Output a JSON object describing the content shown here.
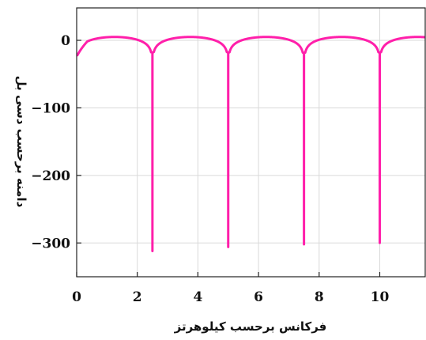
{
  "chart_data": {
    "type": "line",
    "title": "",
    "xlabel": "فرکانس برحسب کیلوهرتز",
    "ylabel": "دامنه برحسب دسی بل",
    "xlim": [
      0,
      11.5
    ],
    "ylim": [
      -350,
      48
    ],
    "x_ticks": [
      0,
      2,
      4,
      6,
      8,
      10
    ],
    "y_ticks": [
      0,
      -100,
      -200,
      -300
    ],
    "x_tick_labels": [
      "0",
      "2",
      "4",
      "6",
      "8",
      "10"
    ],
    "y_tick_labels": [
      "0",
      "−100",
      "−200",
      "−300"
    ],
    "grid": true,
    "line_color": "#ff1faa",
    "series": [
      {
        "notches": [
          {
            "x": 2.5,
            "y": -312
          },
          {
            "x": 5.0,
            "y": -306
          },
          {
            "x": 7.5,
            "y": -302
          },
          {
            "x": 10.0,
            "y": -300
          }
        ],
        "peak_level_db": 5,
        "start_level_db": -22
      }
    ]
  }
}
